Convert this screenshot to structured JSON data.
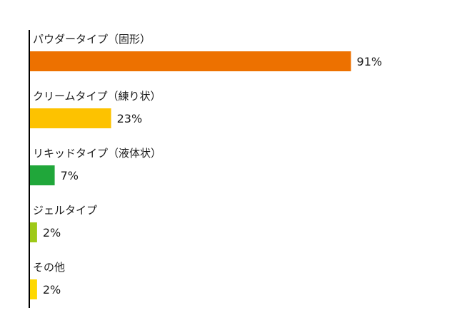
{
  "chart_data": {
    "type": "bar",
    "orientation": "horizontal",
    "categories": [
      "パウダータイプ（固形）",
      "クリームタイプ（練り状）",
      "リキッドタイプ（液体状）",
      "ジェルタイプ",
      "その他"
    ],
    "values": [
      91,
      23,
      7,
      2,
      2
    ],
    "value_labels": [
      "91%",
      "23%",
      "7%",
      "2%",
      "2%"
    ],
    "colors": [
      "#ed7100",
      "#fdc200",
      "#20a73a",
      "#9ec918",
      "#fed800"
    ],
    "xlim": [
      0,
      100
    ],
    "unit": "%",
    "grid": false,
    "legend": "none"
  }
}
